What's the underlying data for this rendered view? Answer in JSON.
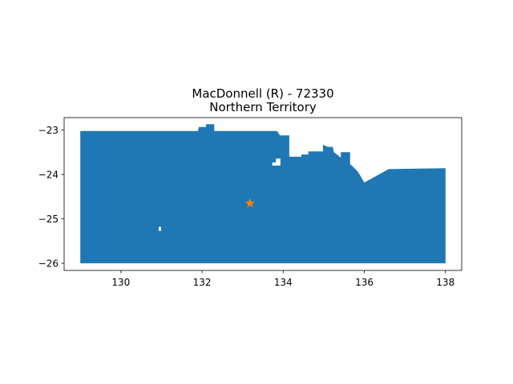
{
  "chart_data": {
    "type": "map",
    "title_line1": "MacDonnell (R) - 72330",
    "title_line2": "Northern Territory",
    "xlabel": "",
    "ylabel": "",
    "xlim": [
      128.6,
      138.4
    ],
    "ylim": [
      -26.16,
      -22.72
    ],
    "xticks": [
      130,
      132,
      134,
      136,
      138
    ],
    "yticks": [
      -23,
      -24,
      -25,
      -26
    ],
    "fill_color": "#1f77b4",
    "marker_color": "#ff7f0e",
    "marker": {
      "shape": "star",
      "x": 133.18,
      "y": -24.65
    },
    "region_outline": [
      [
        129.0,
        -23.02
      ],
      [
        131.9,
        -23.02
      ],
      [
        131.92,
        -22.93
      ],
      [
        132.1,
        -22.93
      ],
      [
        132.1,
        -22.87
      ],
      [
        132.3,
        -22.87
      ],
      [
        132.3,
        -23.02
      ],
      [
        133.85,
        -23.02
      ],
      [
        133.92,
        -23.12
      ],
      [
        134.15,
        -23.12
      ],
      [
        134.15,
        -23.6
      ],
      [
        134.45,
        -23.6
      ],
      [
        134.45,
        -23.55
      ],
      [
        134.62,
        -23.55
      ],
      [
        134.62,
        -23.48
      ],
      [
        134.98,
        -23.48
      ],
      [
        134.98,
        -23.33
      ],
      [
        135.1,
        -23.38
      ],
      [
        135.22,
        -23.38
      ],
      [
        135.25,
        -23.5
      ],
      [
        135.42,
        -23.62
      ],
      [
        135.42,
        -23.5
      ],
      [
        135.65,
        -23.5
      ],
      [
        135.65,
        -23.77
      ],
      [
        135.75,
        -23.85
      ],
      [
        135.85,
        -23.95
      ],
      [
        136.0,
        -24.18
      ],
      [
        136.6,
        -23.88
      ],
      [
        138.0,
        -23.86
      ],
      [
        138.0,
        -26.0
      ],
      [
        129.0,
        -26.0
      ]
    ],
    "holes": [
      [
        [
          130.93,
          -25.18
        ],
        [
          130.99,
          -25.18
        ],
        [
          130.99,
          -25.27
        ],
        [
          130.93,
          -25.27
        ]
      ],
      [
        [
          133.82,
          -23.64
        ],
        [
          133.93,
          -23.64
        ],
        [
          133.93,
          -23.8
        ],
        [
          133.73,
          -23.8
        ],
        [
          133.73,
          -23.73
        ],
        [
          133.82,
          -23.73
        ]
      ]
    ]
  }
}
